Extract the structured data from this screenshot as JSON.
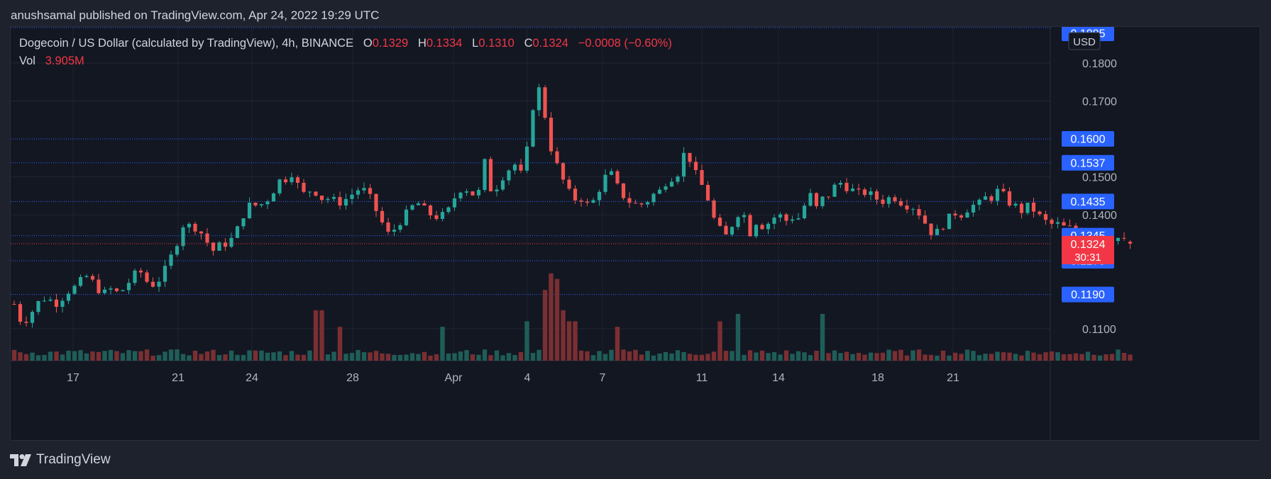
{
  "header": {
    "published_by": "anushsamal published on TradingView.com, Apr 24, 2022 19:29 UTC"
  },
  "legend": {
    "symbol": "Dogecoin / US Dollar (calculated by TradingView), 4h, BINANCE",
    "open_label": "O",
    "open": "0.1329",
    "high_label": "H",
    "high": "0.1334",
    "low_label": "L",
    "low": "0.1310",
    "close_label": "C",
    "close": "0.1324",
    "change": "−0.0008 (−0.60%)",
    "vol_label": "Vol",
    "vol_value": "3.905M"
  },
  "footer": {
    "brand": "TradingView",
    "logo_icon": "tradingview-logo-icon"
  },
  "colors": {
    "up": "#26a69a",
    "down": "#ef5350",
    "vol_up": "#1f5d58",
    "vol_down": "#7a2f32",
    "level_badge": "#2962ff",
    "price_badge": "#f23645"
  },
  "chart_data": {
    "type": "candlestick",
    "timeframe": "4h",
    "currency": "USD",
    "ylim": [
      0.104,
      0.1895
    ],
    "y_ticks": [
      "0.1800",
      "0.1700",
      "0.1500",
      "0.1400",
      "0.1100"
    ],
    "x_ticks": [
      "17",
      "21",
      "24",
      "28",
      "Apr",
      "4",
      "7",
      "11",
      "14",
      "18",
      "21"
    ],
    "levels": [
      "0.1885",
      "0.1600",
      "0.1537",
      "0.1435",
      "0.1345",
      "0.1279",
      "0.1190"
    ],
    "current_price": "0.1324",
    "countdown": "30:31",
    "anchors": [
      [
        0,
        0.1165
      ],
      [
        8,
        0.1115
      ],
      [
        16,
        0.113
      ],
      [
        24,
        0.1165
      ],
      [
        32,
        0.118
      ],
      [
        40,
        0.1175
      ],
      [
        48,
        0.1165
      ],
      [
        56,
        0.1195
      ],
      [
        64,
        0.1205
      ],
      [
        72,
        0.1225
      ],
      [
        80,
        0.124
      ],
      [
        88,
        0.1215
      ],
      [
        96,
        0.119
      ],
      [
        104,
        0.1205
      ],
      [
        112,
        0.1195
      ],
      [
        120,
        0.1205
      ],
      [
        128,
        0.1235
      ],
      [
        136,
        0.1255
      ],
      [
        144,
        0.1225
      ],
      [
        152,
        0.1215
      ],
      [
        160,
        0.1235
      ],
      [
        168,
        0.1275
      ],
      [
        176,
        0.132
      ],
      [
        184,
        0.1375
      ],
      [
        192,
        0.137
      ],
      [
        200,
        0.1365
      ],
      [
        208,
        0.1335
      ],
      [
        216,
        0.1305
      ],
      [
        224,
        0.132
      ],
      [
        232,
        0.1325
      ],
      [
        240,
        0.1345
      ],
      [
        248,
        0.1395
      ],
      [
        256,
        0.1425
      ],
      [
        264,
        0.1425
      ],
      [
        272,
        0.143
      ],
      [
        280,
        0.1455
      ],
      [
        288,
        0.149
      ],
      [
        296,
        0.1495
      ],
      [
        304,
        0.1515
      ],
      [
        312,
        0.145
      ],
      [
        320,
        0.1465
      ],
      [
        328,
        0.146
      ],
      [
        336,
        0.144
      ],
      [
        344,
        0.1445
      ],
      [
        352,
        0.143
      ],
      [
        360,
        0.144
      ],
      [
        368,
        0.1455
      ],
      [
        376,
        0.147
      ],
      [
        384,
        0.146
      ],
      [
        392,
        0.142
      ],
      [
        400,
        0.138
      ],
      [
        408,
        0.1345
      ],
      [
        416,
        0.137
      ],
      [
        424,
        0.1395
      ],
      [
        432,
        0.142
      ],
      [
        440,
        0.143
      ],
      [
        448,
        0.141
      ],
      [
        456,
        0.1395
      ],
      [
        464,
        0.1395
      ],
      [
        472,
        0.141
      ],
      [
        480,
        0.145
      ],
      [
        488,
        0.1475
      ],
      [
        496,
        0.146
      ],
      [
        504,
        0.1445
      ],
      [
        512,
        0.154
      ],
      [
        520,
        0.145
      ],
      [
        528,
        0.149
      ],
      [
        536,
        0.1515
      ],
      [
        544,
        0.1535
      ],
      [
        552,
        0.1505
      ],
      [
        560,
        0.1595
      ],
      [
        568,
        0.176
      ],
      [
        576,
        0.168
      ],
      [
        584,
        0.1575
      ],
      [
        592,
        0.152
      ],
      [
        600,
        0.1475
      ],
      [
        608,
        0.144
      ],
      [
        616,
        0.1445
      ],
      [
        624,
        0.1425
      ],
      [
        632,
        0.144
      ],
      [
        640,
        0.149
      ],
      [
        648,
        0.1515
      ],
      [
        656,
        0.1475
      ],
      [
        664,
        0.1445
      ],
      [
        672,
        0.143
      ],
      [
        680,
        0.1425
      ],
      [
        688,
        0.1435
      ],
      [
        696,
        0.1455
      ],
      [
        704,
        0.1465
      ],
      [
        712,
        0.15
      ],
      [
        720,
        0.1495
      ],
      [
        728,
        0.156
      ],
      [
        736,
        0.1545
      ],
      [
        744,
        0.149
      ],
      [
        752,
        0.1465
      ],
      [
        760,
        0.1395
      ],
      [
        768,
        0.136
      ],
      [
        776,
        0.134
      ],
      [
        784,
        0.1395
      ],
      [
        792,
        0.1415
      ],
      [
        800,
        0.135
      ],
      [
        808,
        0.1385
      ],
      [
        816,
        0.1365
      ],
      [
        824,
        0.139
      ],
      [
        832,
        0.14
      ],
      [
        840,
        0.1385
      ],
      [
        848,
        0.1395
      ],
      [
        856,
        0.139
      ],
      [
        864,
        0.1465
      ],
      [
        872,
        0.1415
      ],
      [
        880,
        0.1445
      ],
      [
        888,
        0.1455
      ],
      [
        896,
        0.149
      ],
      [
        904,
        0.1475
      ],
      [
        912,
        0.1465
      ],
      [
        920,
        0.1455
      ],
      [
        928,
        0.146
      ],
      [
        936,
        0.1445
      ],
      [
        944,
        0.1435
      ],
      [
        952,
        0.1445
      ],
      [
        960,
        0.1445
      ],
      [
        968,
        0.1425
      ],
      [
        976,
        0.1425
      ],
      [
        984,
        0.1405
      ],
      [
        992,
        0.1375
      ],
      [
        1000,
        0.1345
      ],
      [
        1008,
        0.1365
      ],
      [
        1016,
        0.139
      ],
      [
        1024,
        0.1405
      ],
      [
        1032,
        0.14
      ],
      [
        1040,
        0.1425
      ],
      [
        1048,
        0.1425
      ],
      [
        1056,
        0.1445
      ],
      [
        1064,
        0.1445
      ],
      [
        1072,
        0.147
      ],
      [
        1080,
        0.1435
      ],
      [
        1088,
        0.1425
      ],
      [
        1096,
        0.141
      ],
      [
        1104,
        0.1425
      ],
      [
        1112,
        0.1405
      ],
      [
        1120,
        0.1385
      ],
      [
        1128,
        0.1375
      ],
      [
        1136,
        0.1375
      ],
      [
        1144,
        0.1365
      ],
      [
        1152,
        0.1365
      ],
      [
        1160,
        0.1355
      ],
      [
        1168,
        0.1355
      ],
      [
        1176,
        0.1345
      ],
      [
        1184,
        0.1345
      ],
      [
        1192,
        0.134
      ],
      [
        1200,
        0.134
      ],
      [
        1208,
        0.133
      ],
      [
        1214,
        0.1324
      ]
    ],
    "volume_spikes": [
      [
        326,
        2.2
      ],
      [
        333,
        2.2
      ],
      [
        355,
        1.3
      ],
      [
        468,
        1.3
      ],
      [
        556,
        1.6
      ],
      [
        575,
        3.3
      ],
      [
        582,
        4.2
      ],
      [
        589,
        3.9
      ],
      [
        596,
        2.2
      ],
      [
        603,
        1.6
      ],
      [
        608,
        1.6
      ],
      [
        659,
        1.3
      ],
      [
        765,
        1.6
      ],
      [
        786,
        2.0
      ],
      [
        882,
        2.0
      ]
    ]
  }
}
